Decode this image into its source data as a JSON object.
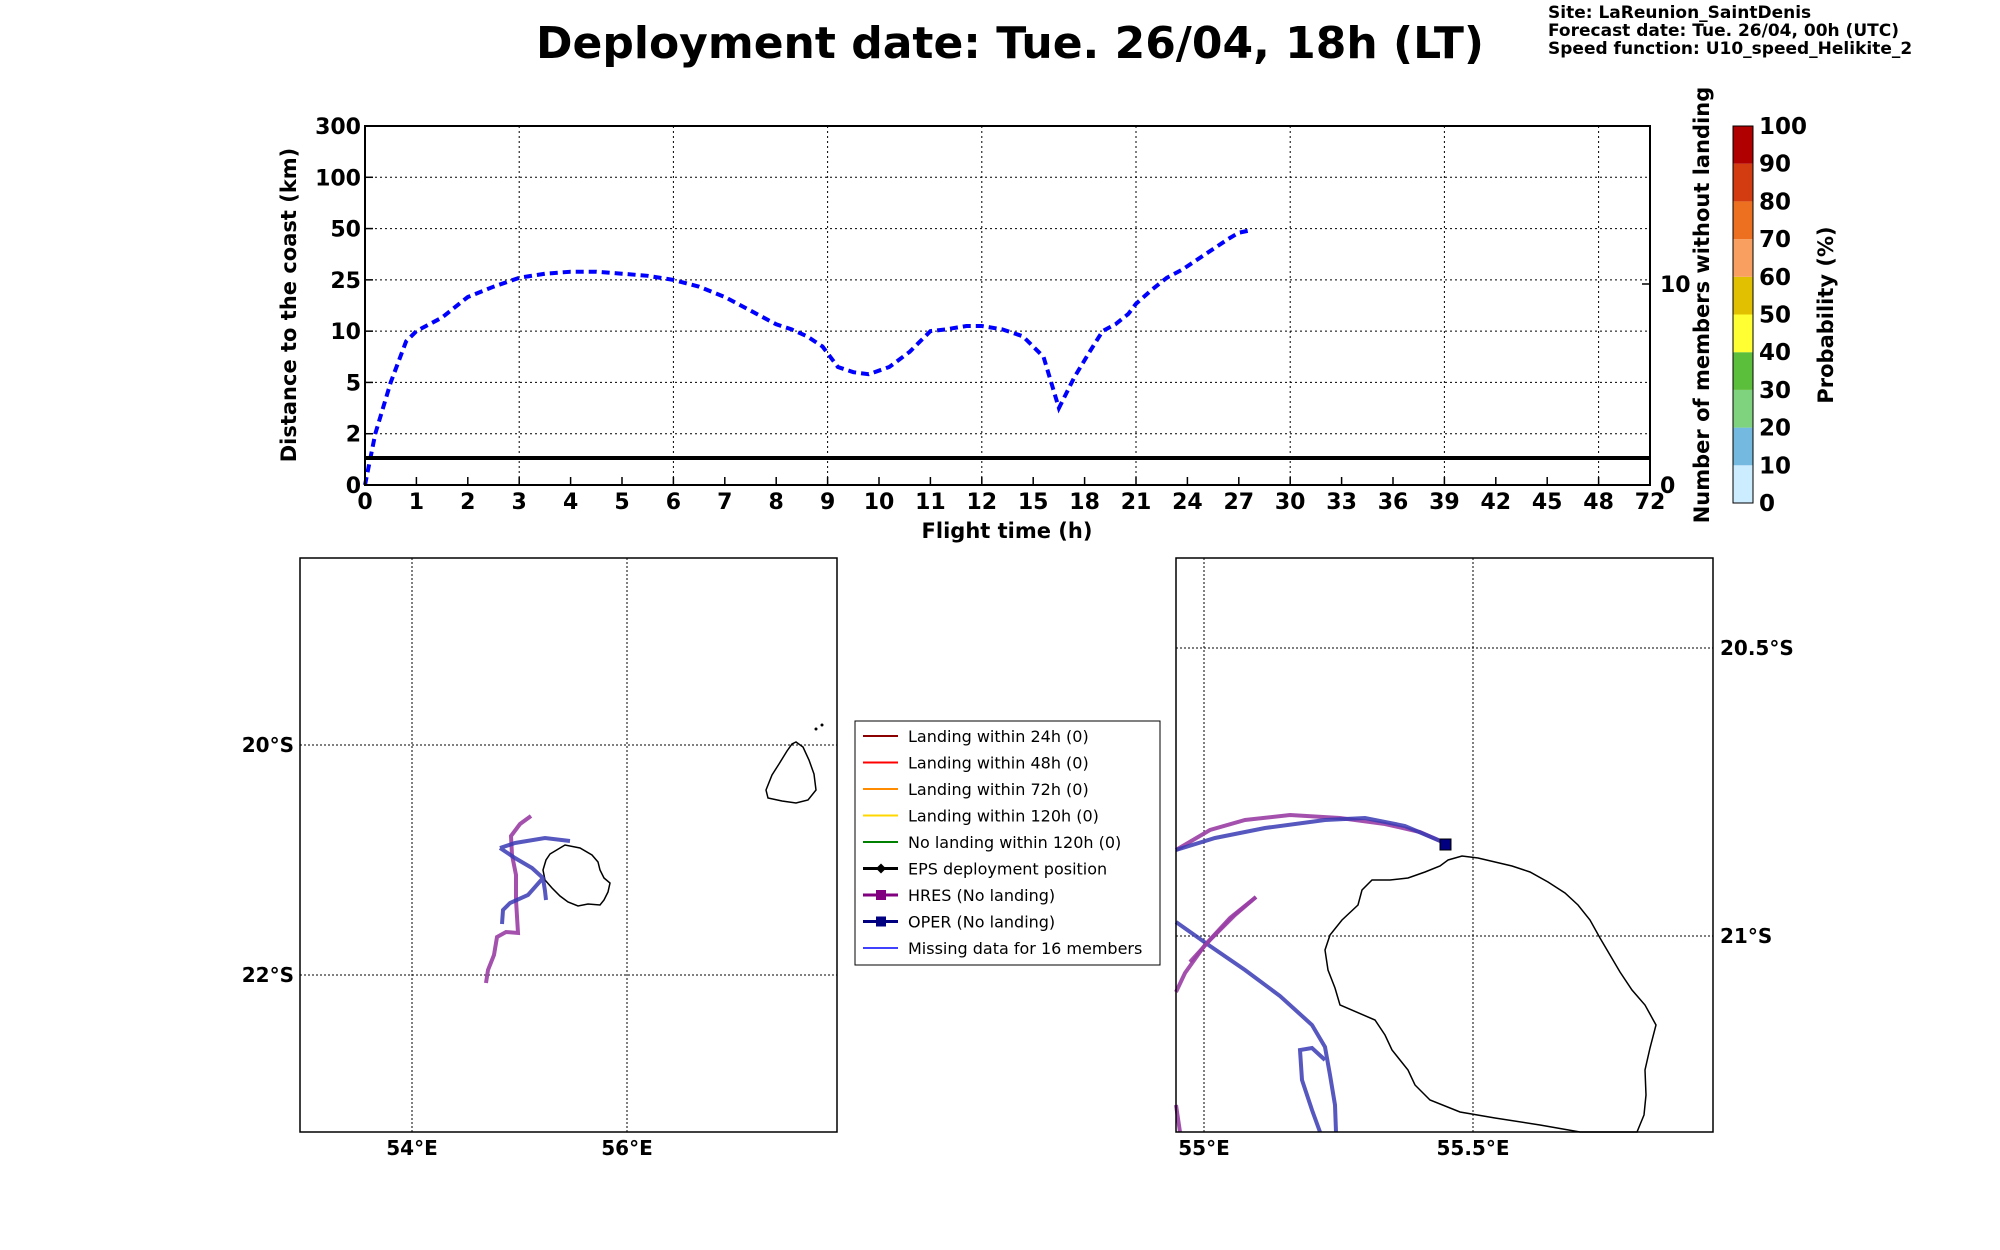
{
  "header": {
    "title": "Deployment date: Tue. 26/04, 18h (LT)",
    "info": [
      "Site: LaReunion_SaintDenis",
      "Forecast date: Tue. 26/04, 00h (UTC)",
      "Speed function: U10_speed_Helikite_2"
    ]
  },
  "chart_data": [
    {
      "type": "line",
      "xlabel": "Flight time (h)",
      "ylabel": "Distance to the coast (km)",
      "ylabel_right": "Number of members without landing",
      "x_ticks": [
        "0",
        "1",
        "2",
        "3",
        "4",
        "5",
        "6",
        "7",
        "8",
        "9",
        "10",
        "11",
        "12",
        "15",
        "18",
        "21",
        "24",
        "27",
        "30",
        "33",
        "36",
        "39",
        "42",
        "45",
        "48",
        "72"
      ],
      "y_ticks": [
        "0",
        "2",
        "5",
        "10",
        "25",
        "50",
        "100",
        "300"
      ],
      "y_ticks_right": [
        "0",
        "10"
      ],
      "grid": true,
      "series": [
        {
          "color": "#0000ff",
          "style": "dashed",
          "x_tick_index": [
            0,
            0.2,
            0.5,
            0.8,
            1,
            1.5,
            2,
            2.5,
            3,
            3.5,
            4,
            4.5,
            5,
            5.5,
            6,
            6.5,
            7,
            7.5,
            8,
            8.3,
            8.6,
            8.9,
            9.2,
            9.5,
            9.8,
            10.2,
            10.6,
            11,
            11.3,
            11.7,
            12,
            12.4,
            12.8,
            13.2,
            13.5,
            13.8,
            14.1,
            14.35,
            14.6,
            14.85,
            15,
            15.3,
            15.6,
            15.9,
            16.2,
            16.5,
            16.8,
            17,
            17.2
          ],
          "y": [
            0,
            2,
            5,
            9,
            10,
            14,
            20,
            23,
            26,
            28,
            29,
            29,
            28,
            27,
            25,
            23,
            20,
            16,
            12,
            10.5,
            9.5,
            8.5,
            6.5,
            6,
            5.8,
            6.5,
            8,
            10,
            10.5,
            11.5,
            11.5,
            10.5,
            9.5,
            7.5,
            3.5,
            5.5,
            8,
            10,
            12,
            15,
            18,
            22,
            26,
            30,
            35,
            40,
            45,
            48,
            49
          ]
        },
        {
          "color": "#000000",
          "style": "solid",
          "axis": "right",
          "x_tick_index": [
            0,
            25
          ],
          "y": [
            1,
            1
          ]
        }
      ]
    },
    {
      "type": "map",
      "x_ticks": [
        "54°E",
        "56°E"
      ],
      "y_ticks": [
        "20°S",
        "22°S"
      ],
      "grid": true
    },
    {
      "type": "map",
      "x_ticks": [
        "55°E",
        "55.5°E"
      ],
      "y_ticks": [
        "20.5°S",
        "21°S"
      ],
      "grid": true
    }
  ],
  "legend": [
    {
      "label": "Landing within 24h (0)",
      "color": "#8b0000",
      "marker": "none"
    },
    {
      "label": "Landing within 48h (0)",
      "color": "#ff0000",
      "marker": "none"
    },
    {
      "label": "Landing within 72h (0)",
      "color": "#ff8c00",
      "marker": "none"
    },
    {
      "label": "Landing within 120h (0)",
      "color": "#ffd700",
      "marker": "none"
    },
    {
      "label": "No landing within 120h (0)",
      "color": "#008000",
      "marker": "none"
    },
    {
      "label": "EPS deployment position",
      "color": "#000000",
      "marker": "diamond"
    },
    {
      "label": "HRES (No landing)",
      "color": "#800080",
      "marker": "square"
    },
    {
      "label": "OPER (No landing)",
      "color": "#000080",
      "marker": "square"
    },
    {
      "label": "Missing data for 16 members",
      "color": "#4040ff",
      "marker": "none"
    }
  ],
  "colorbar": {
    "label": "Probability (%)",
    "ticks": [
      "0",
      "10",
      "20",
      "30",
      "40",
      "50",
      "60",
      "70",
      "80",
      "90",
      "100"
    ],
    "colors": [
      "#ccecff",
      "#74b9e0",
      "#7fd37f",
      "#5cbf3c",
      "#ffff33",
      "#e0c000",
      "#f9a060",
      "#ec7020",
      "#d23c10",
      "#b00000",
      "#6e0010"
    ]
  }
}
